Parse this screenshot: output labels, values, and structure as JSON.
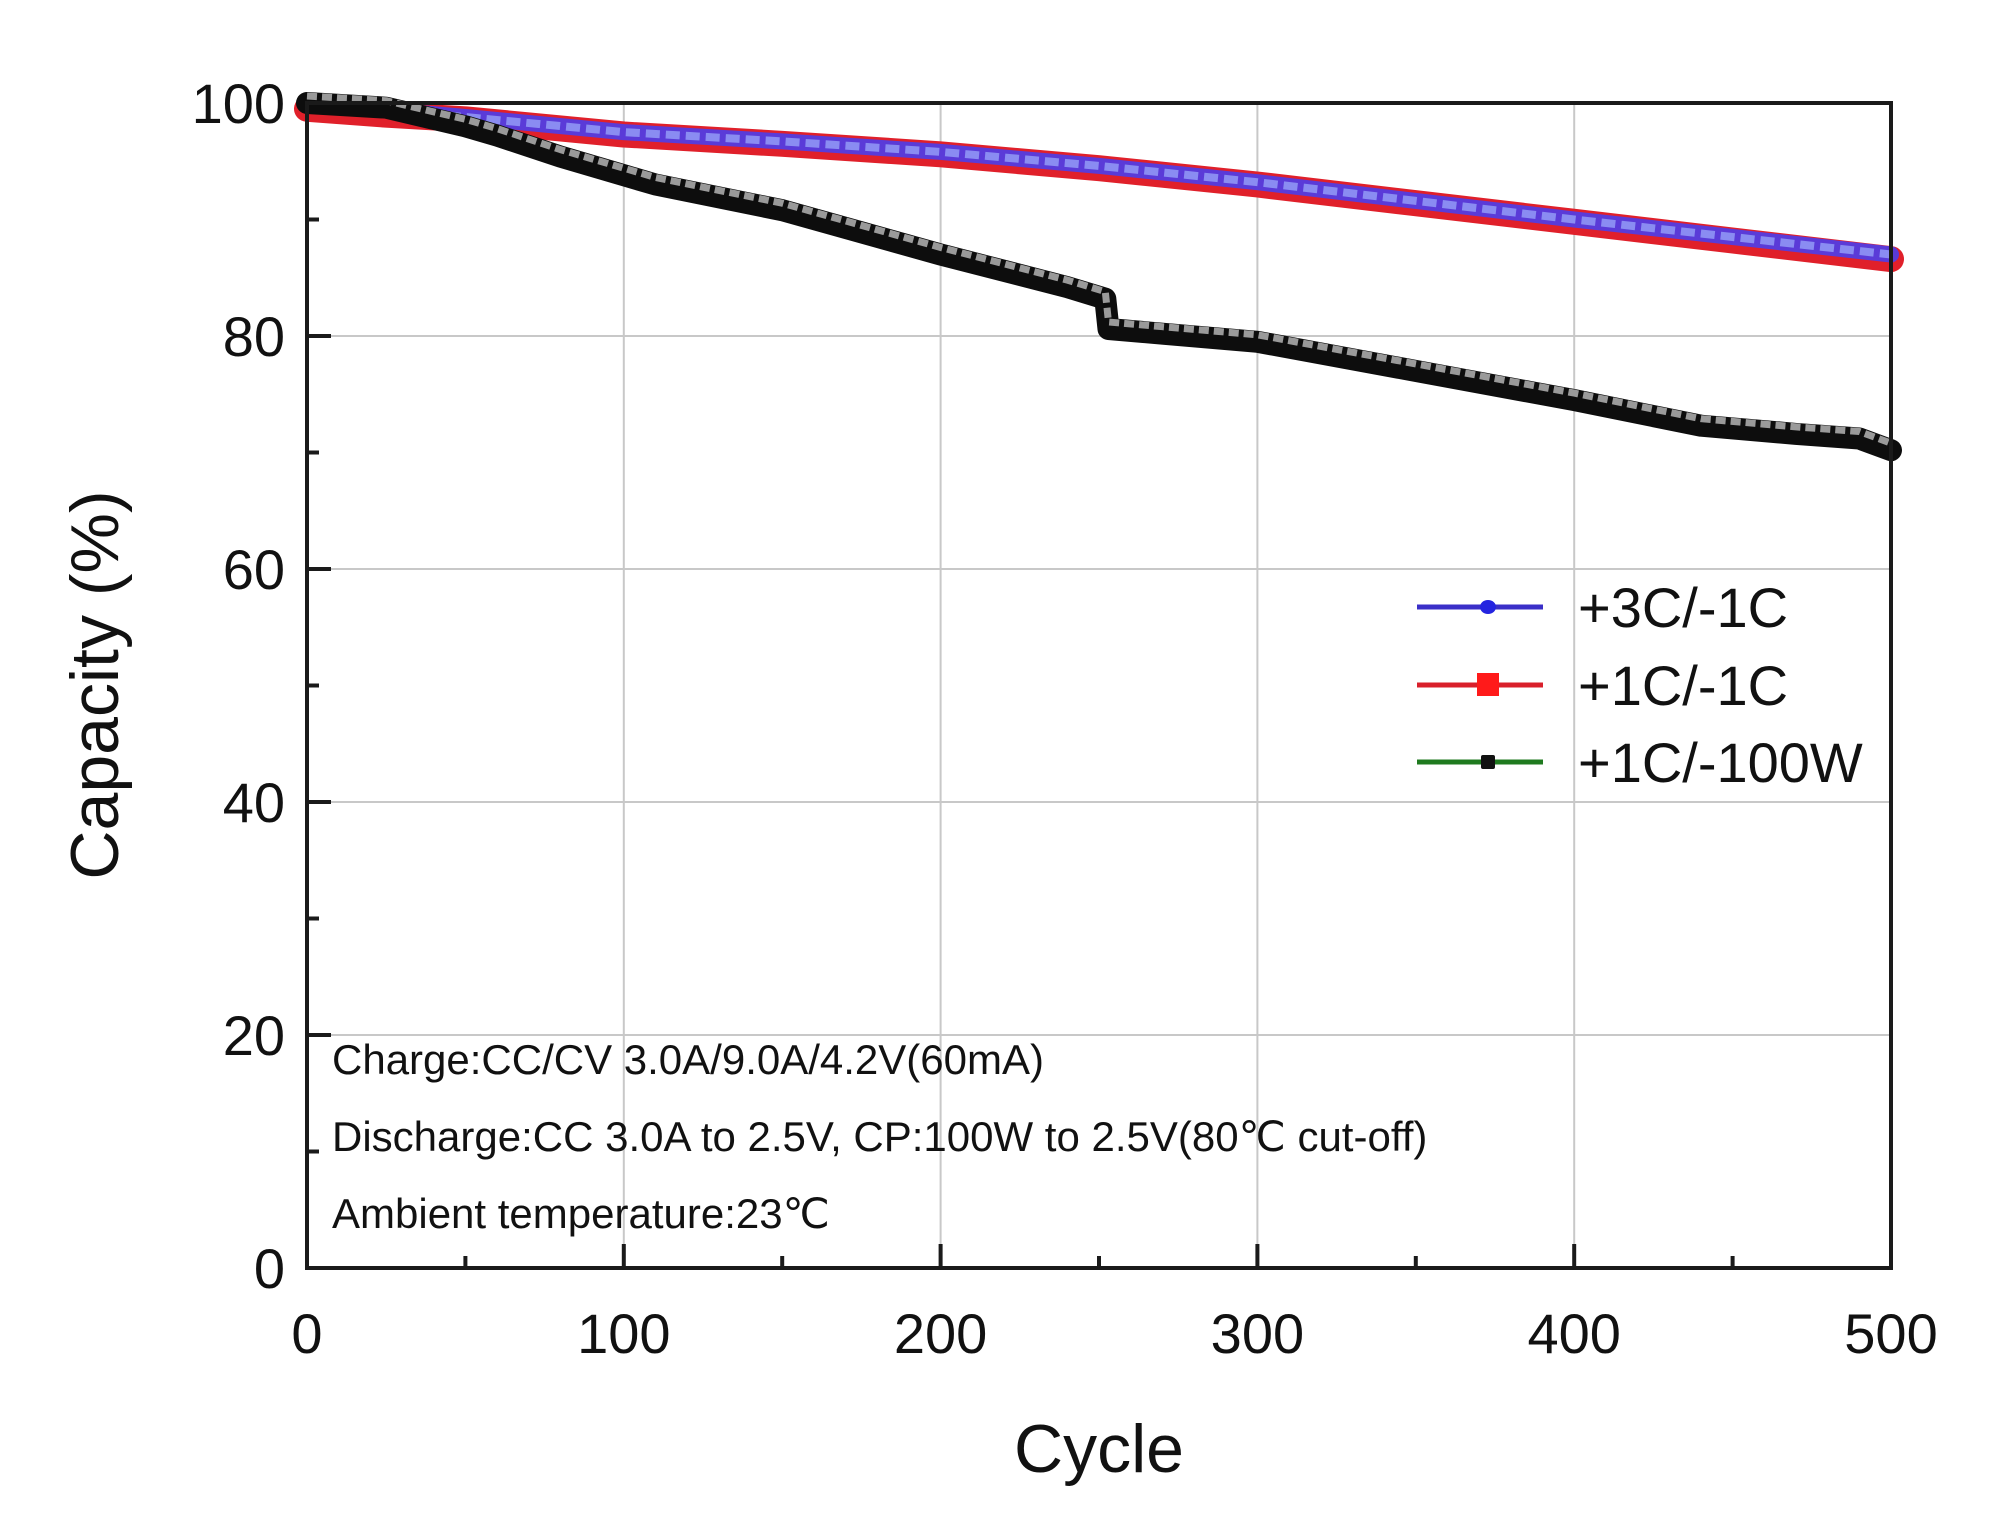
{
  "chart_data": {
    "type": "line",
    "title": "",
    "xlabel": "Cycle",
    "ylabel": "Capacity (%)",
    "xlim": [
      0,
      500
    ],
    "ylim": [
      0,
      100
    ],
    "x_ticks": [
      0,
      100,
      200,
      300,
      400,
      500
    ],
    "x_minor_ticks": [
      50,
      150,
      250,
      350,
      450
    ],
    "y_ticks": [
      0,
      20,
      40,
      60,
      80,
      100
    ],
    "y_minor_ticks": [
      10,
      30,
      50,
      70,
      90
    ],
    "grid": true,
    "legend_position": "center-right",
    "series": [
      {
        "name": "+3C/-1C",
        "color": "#2f2fd8",
        "marker": "circle",
        "x": [
          0,
          25,
          50,
          100,
          150,
          200,
          250,
          300,
          350,
          400,
          450,
          500
        ],
        "y": [
          99.8,
          99.4,
          98.8,
          97.5,
          96.7,
          95.8,
          94.6,
          93.2,
          91.6,
          90.0,
          88.5,
          87.0
        ]
      },
      {
        "name": "+1C/-1C",
        "color": "#e0202a",
        "marker": "square",
        "x": [
          0,
          25,
          50,
          100,
          150,
          200,
          250,
          300,
          350,
          400,
          450,
          500
        ],
        "y": [
          99.5,
          99.0,
          98.6,
          97.3,
          96.5,
          95.6,
          94.4,
          93.0,
          91.4,
          89.8,
          88.2,
          86.6
        ]
      },
      {
        "name": "+1C/-100W",
        "color": "#1f7a1f",
        "marker": "square",
        "marker_color": "#111111",
        "x": [
          0,
          25,
          50,
          60,
          80,
          100,
          110,
          150,
          200,
          240,
          252,
          253,
          270,
          300,
          350,
          400,
          440,
          470,
          490,
          500
        ],
        "y": [
          100.0,
          99.6,
          98.0,
          97.2,
          95.4,
          93.8,
          93.0,
          90.8,
          87.0,
          84.2,
          83.2,
          80.6,
          80.2,
          79.5,
          77.0,
          74.5,
          72.3,
          71.6,
          71.2,
          70.2
        ]
      }
    ],
    "annotations": [
      "Charge:CC/CV 3.0A/9.0A/4.2V(60mA)",
      "Discharge:CC 3.0A to 2.5V, CP:100W to 2.5V(80℃ cut-off)",
      "Ambient temperature:23℃"
    ]
  }
}
